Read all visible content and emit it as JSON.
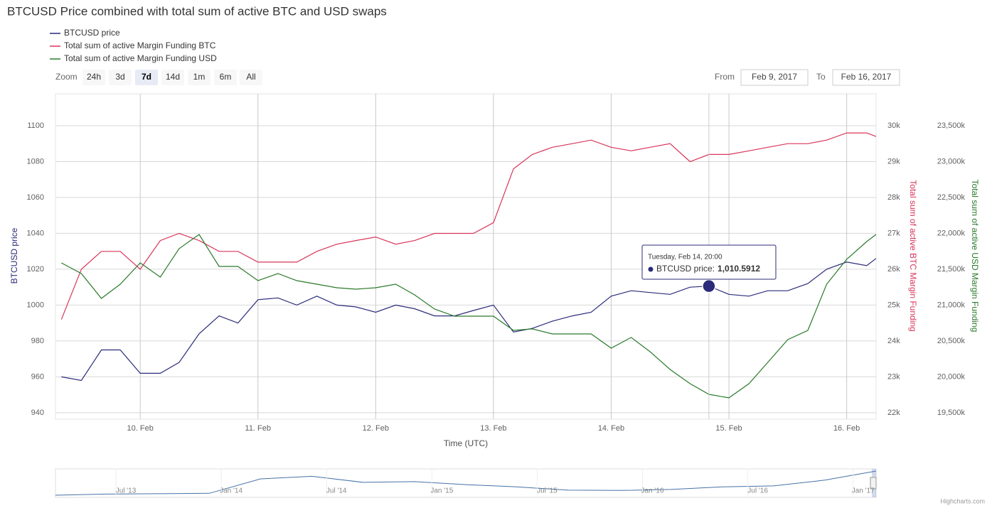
{
  "chart_data": {
    "type": "line",
    "title": "BTCUSD Price combined with total sum of active BTC and USD swaps",
    "xlabel": "Time (UTC)",
    "ylabel": "BTCUSD price",
    "y2label": "Total sum of active BTC Margin Funding",
    "y3label": "Total sum of active USD Margin Funding",
    "x": [
      9.33,
      9.5,
      9.67,
      9.83,
      10,
      10.17,
      10.33,
      10.5,
      10.67,
      10.83,
      11,
      11.17,
      11.33,
      11.5,
      11.67,
      11.83,
      12,
      12.17,
      12.33,
      12.5,
      12.67,
      12.83,
      13,
      13.17,
      13.33,
      13.5,
      13.67,
      13.83,
      14,
      14.17,
      14.33,
      14.5,
      14.67,
      14.83,
      15,
      15.17,
      15.33,
      15.5,
      15.67,
      15.83,
      16,
      16.17,
      16.25
    ],
    "xlim": [
      9.28,
      16.25
    ],
    "xticks": [
      {
        "value": 10,
        "label": "10. Feb"
      },
      {
        "value": 11,
        "label": "11. Feb"
      },
      {
        "value": 12,
        "label": "12. Feb"
      },
      {
        "value": 13,
        "label": "13. Feb"
      },
      {
        "value": 14,
        "label": "14. Feb"
      },
      {
        "value": 15,
        "label": "15. Feb"
      },
      {
        "value": 16,
        "label": "16. Feb"
      }
    ],
    "ylim": [
      936.4,
      1117.8
    ],
    "yticks": [
      940,
      960,
      980,
      1000,
      1020,
      1040,
      1060,
      1080,
      1100
    ],
    "y2lim": [
      21822,
      30891
    ],
    "y2ticks": [
      {
        "value": 22000,
        "label": "22k"
      },
      {
        "value": 23000,
        "label": "23k"
      },
      {
        "value": 24000,
        "label": "24k"
      },
      {
        "value": 25000,
        "label": "25k"
      },
      {
        "value": 26000,
        "label": "26k"
      },
      {
        "value": 27000,
        "label": "27k"
      },
      {
        "value": 28000,
        "label": "28k"
      },
      {
        "value": 29000,
        "label": "29k"
      },
      {
        "value": 30000,
        "label": "30k"
      }
    ],
    "y3lim": [
      19410900,
      23945500
    ],
    "y3ticks": [
      {
        "value": 19500000,
        "label": "19,500k"
      },
      {
        "value": 20000000,
        "label": "20,000k"
      },
      {
        "value": 20500000,
        "label": "20,500k"
      },
      {
        "value": 21000000,
        "label": "21,000k"
      },
      {
        "value": 21500000,
        "label": "21,500k"
      },
      {
        "value": 22000000,
        "label": "22,000k"
      },
      {
        "value": 22500000,
        "label": "22,500k"
      },
      {
        "value": 23000000,
        "label": "23,000k"
      },
      {
        "value": 23500000,
        "label": "23,500k"
      }
    ],
    "grid": true,
    "series": [
      {
        "name": "BTCUSD price",
        "color": "#2b2b7a",
        "axis": "y",
        "values": [
          960,
          958,
          975,
          975,
          962,
          962,
          968,
          984,
          994,
          990,
          1003,
          1004,
          1000,
          1005,
          1000,
          999,
          996,
          1000,
          998,
          994,
          994,
          997,
          1000,
          985,
          987,
          991,
          994,
          996,
          1005,
          1008,
          1007,
          1006,
          1010,
          1010.5912,
          1006,
          1005,
          1008,
          1008,
          1012,
          1020,
          1024,
          1022,
          1026
        ]
      },
      {
        "name": "Total sum of active Margin Funding BTC",
        "color": "#d9355a",
        "axis": "y2",
        "values": [
          24600,
          26000,
          26500,
          26500,
          26000,
          26800,
          27000,
          26800,
          26500,
          26500,
          26200,
          26200,
          26200,
          26500,
          26700,
          26800,
          26900,
          26700,
          26800,
          27000,
          27000,
          27000,
          27300,
          28800,
          29200,
          29400,
          29500,
          29600,
          29400,
          29300,
          29400,
          29500,
          29000,
          29200,
          29200,
          29300,
          29400,
          29500,
          29500,
          29600,
          29800,
          29800,
          29700
        ]
      },
      {
        "name": "Total sum of active Margin Funding USD",
        "color": "#2a7a2a",
        "axis": "y3",
        "values": [
          21589000,
          21441000,
          21094000,
          21292000,
          21589000,
          21391000,
          21787000,
          21985000,
          21540000,
          21540000,
          21342000,
          21441000,
          21342000,
          21292000,
          21243000,
          21223000,
          21243000,
          21292000,
          21144000,
          20946000,
          20847000,
          20847000,
          20847000,
          20649000,
          20669000,
          20599000,
          20599000,
          20599000,
          20401000,
          20550000,
          20351000,
          20104000,
          19906000,
          19757000,
          19708000,
          19906000,
          20203000,
          20520000,
          20649000,
          21292000,
          21639000,
          21886000,
          21985000
        ]
      }
    ],
    "tooltip": {
      "series": 0,
      "index": 33,
      "title": "Tuesday, Feb 14, 20:00",
      "label": "BTCUSD price:",
      "value_label": "1,010.5912"
    }
  },
  "range_selector": {
    "label": "Zoom",
    "buttons": [
      "24h",
      "3d",
      "7d",
      "14d",
      "1m",
      "6m",
      "All"
    ],
    "selected": 2
  },
  "date_range": {
    "from_label": "From",
    "from": "Feb 9, 2017",
    "to_label": "To",
    "to": "Feb 16, 2017"
  },
  "navigator": {
    "labels": [
      "Jul '13",
      "Jan '14",
      "Jul '14",
      "Jan '15",
      "Jul '15",
      "Jan '16",
      "Jul '16",
      "Jan '17"
    ],
    "values": [
      50,
      95,
      110,
      125,
      700,
      800,
      560,
      590,
      470,
      380,
      250,
      240,
      280,
      380,
      420,
      650,
      1010
    ]
  },
  "credit": "Highcharts.com"
}
